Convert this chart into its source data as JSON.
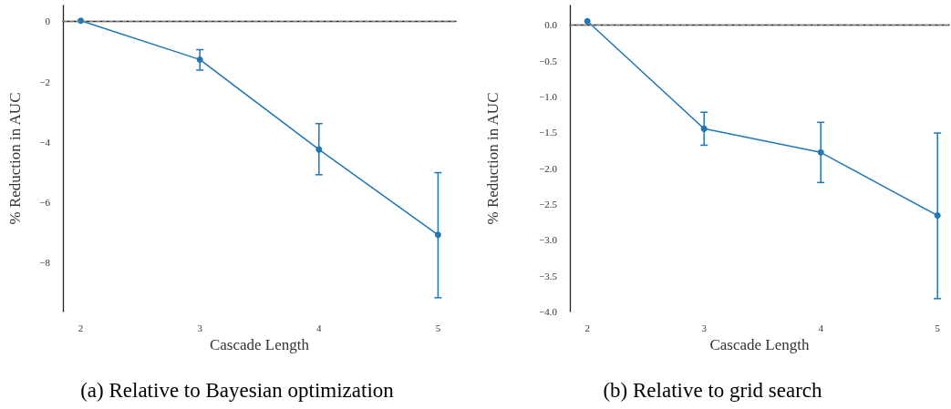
{
  "chart_data": [
    {
      "type": "line",
      "title": "(a) Relative to Bayesian optimization",
      "xlabel": "Cascade Length",
      "ylabel": "% Reduction in AUC",
      "x": [
        2,
        3,
        4,
        5
      ],
      "series": [
        {
          "color": "#1f77b4",
          "values": [
            0.02,
            -1.27,
            -4.26,
            -7.1
          ],
          "errors": [
            null,
            [
              -1.62,
              -0.94
            ],
            [
              -5.1,
              -3.4
            ],
            [
              -9.19,
              -5.03
            ]
          ]
        }
      ],
      "xlim": [
        1.85,
        5.15
      ],
      "xticks": [
        2,
        3,
        4,
        5
      ],
      "ylim": [
        -9.65,
        0.53
      ],
      "yticks": [
        {
          "value": 0,
          "label": "0"
        },
        {
          "value": -2,
          "label": "−2"
        },
        {
          "value": -4,
          "label": "−4"
        },
        {
          "value": -6,
          "label": "−6"
        },
        {
          "value": -8,
          "label": "−8"
        }
      ],
      "ref_lines": [
        {
          "axis": "y",
          "value": 0,
          "color": "#808080",
          "line_style": "dashed"
        }
      ],
      "grid": false,
      "marker": "circle",
      "line_style": "solid"
    },
    {
      "type": "line",
      "title": "(b) Relative to grid search",
      "xlabel": "Cascade Length",
      "ylabel": "% Reduction in AUC",
      "x": [
        2,
        3,
        4,
        5
      ],
      "series": [
        {
          "color": "#1f77b4",
          "values": [
            0.05,
            -1.45,
            -1.78,
            -2.66
          ],
          "errors": [
            null,
            [
              -1.68,
              -1.22
            ],
            [
              -2.2,
              -1.36
            ],
            [
              -3.82,
              -1.51
            ]
          ]
        }
      ],
      "xlim": [
        1.85,
        5.1
      ],
      "xticks": [
        2,
        3,
        4,
        5
      ],
      "ylim": [
        -4.0,
        0.27
      ],
      "yticks": [
        {
          "value": 0,
          "label": "0.0"
        },
        {
          "value": -0.5,
          "label": "−0.5"
        },
        {
          "value": -1,
          "label": "−1.0"
        },
        {
          "value": -1.5,
          "label": "−1.5"
        },
        {
          "value": -2,
          "label": "−2.0"
        },
        {
          "value": -2.5,
          "label": "−2.5"
        },
        {
          "value": -3,
          "label": "−3.0"
        },
        {
          "value": -3.5,
          "label": "−3.5"
        },
        {
          "value": -4,
          "label": "−4.0"
        }
      ],
      "ref_lines": [
        {
          "axis": "y",
          "value": 0,
          "color": "#808080",
          "line_style": "dashed"
        }
      ],
      "grid": false,
      "marker": "circle",
      "line_style": "solid"
    }
  ]
}
